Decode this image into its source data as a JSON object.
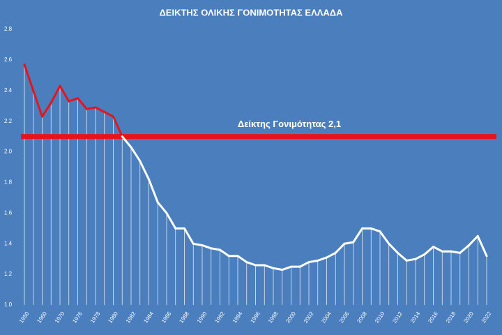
{
  "chart_data": {
    "type": "line",
    "title": "ΔΕΙΚΤΗΣ ΟΛΙΚΗΣ ΓΟΝΙΜΟΤΗΤΑΣ ΕΛΛΑΔΑ",
    "categories": [
      "1950",
      null,
      "1960",
      null,
      "1970",
      null,
      "1976",
      null,
      "1978",
      null,
      "1980",
      null,
      "1982",
      null,
      "1984",
      null,
      "1986",
      null,
      "1988",
      null,
      "1990",
      null,
      "1992",
      null,
      "1994",
      null,
      "1996",
      null,
      "1998",
      null,
      "2000",
      null,
      "2002",
      null,
      "2004",
      null,
      "2006",
      null,
      "2008",
      null,
      "2010",
      null,
      "2012",
      null,
      "2014",
      null,
      "2016",
      null,
      "2018",
      null,
      "2020",
      null,
      "2022"
    ],
    "values": [
      2.57,
      2.4,
      2.23,
      2.32,
      2.43,
      2.33,
      2.35,
      2.28,
      2.29,
      2.26,
      2.23,
      2.1,
      2.03,
      1.94,
      1.82,
      1.67,
      1.6,
      1.5,
      1.5,
      1.4,
      1.39,
      1.37,
      1.36,
      1.32,
      1.32,
      1.28,
      1.26,
      1.26,
      1.24,
      1.23,
      1.25,
      1.25,
      1.28,
      1.29,
      1.31,
      1.34,
      1.4,
      1.41,
      1.5,
      1.5,
      1.48,
      1.4,
      1.34,
      1.29,
      1.3,
      1.33,
      1.38,
      1.35,
      1.35,
      1.34,
      1.39,
      1.45,
      1.32
    ],
    "color": "#ffffff",
    "highlight_color": "#e8141a",
    "reference": {
      "value": 2.1,
      "label": "Δείκτης Γονιμότητας 2,1",
      "color": "#e8141a"
    },
    "ylim": [
      1,
      2.8
    ],
    "yticks": [
      {
        "value": 1,
        "label": "1.0"
      },
      1.2,
      1.4,
      1.6,
      1.8,
      {
        "value": 2,
        "label": "2.0"
      },
      2.2,
      2.4,
      2.6,
      2.8
    ],
    "drop_lines": true
  }
}
